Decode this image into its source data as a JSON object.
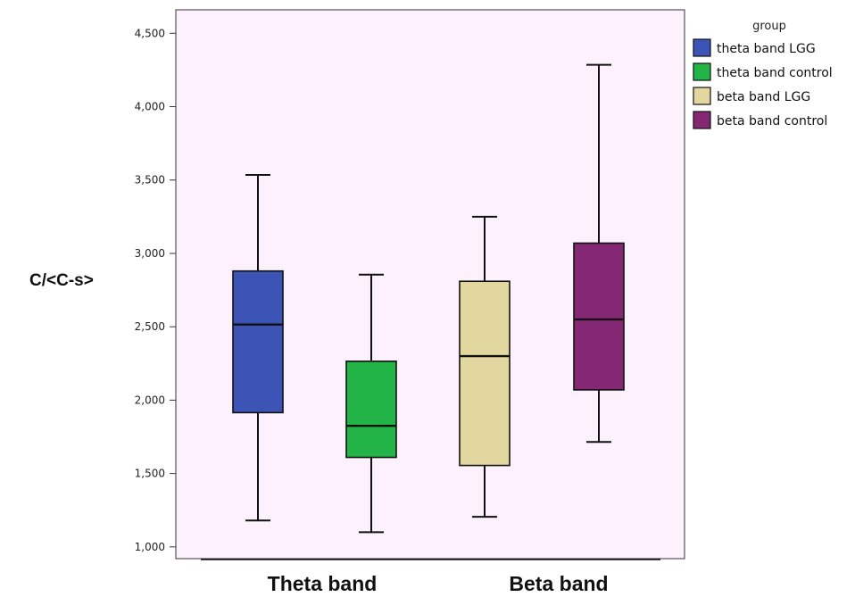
{
  "chart_data": {
    "type": "boxplot",
    "ylabel": "C/<C-s>",
    "ylim": [
      920,
      4660
    ],
    "yticks": [
      1000,
      1500,
      2000,
      2500,
      3000,
      3500,
      4000,
      4500
    ],
    "ytick_labels": [
      "1,000",
      "1,500",
      "2,000",
      "2,500",
      "3,000",
      "3,500",
      "4,000",
      "4,500"
    ],
    "categories": [
      "Theta band",
      "Beta band"
    ],
    "legend": {
      "title": "group",
      "position": "right"
    },
    "grid": false,
    "plot_background": "#fcf1fc",
    "series": [
      {
        "name": "theta band LGG",
        "category": "Theta band",
        "color": "#3b54b5",
        "min": 1180,
        "q1": 1915,
        "median": 2515,
        "q3": 2880,
        "max": 3535
      },
      {
        "name": "theta band control",
        "category": "Theta band",
        "color": "#22b446",
        "min": 1100,
        "q1": 1610,
        "median": 1825,
        "q3": 2265,
        "max": 2855
      },
      {
        "name": "beta band LGG",
        "category": "Beta band",
        "color": "#e3d7a0",
        "min": 1205,
        "q1": 1555,
        "median": 2300,
        "q3": 2810,
        "max": 3250
      },
      {
        "name": "beta band control",
        "category": "Beta band",
        "color": "#842874",
        "min": 1715,
        "q1": 2070,
        "median": 2550,
        "q3": 3070,
        "max": 4285
      }
    ]
  }
}
